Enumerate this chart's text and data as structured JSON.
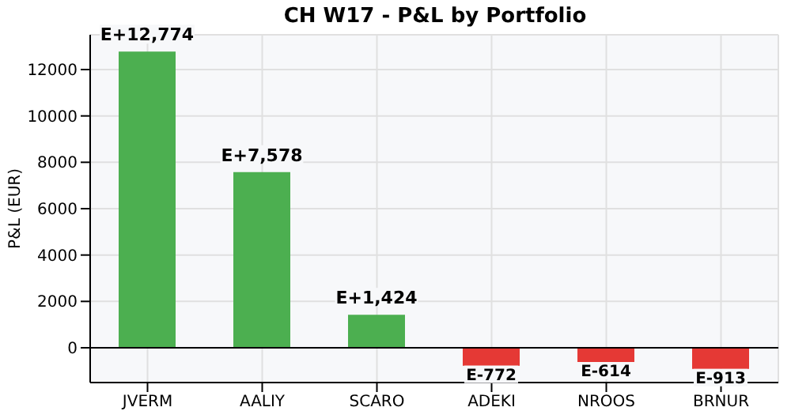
{
  "chart_data": {
    "type": "bar",
    "title": "CH W17 - P&L by Portfolio",
    "ylabel": "P&L (EUR)",
    "categories": [
      "JVERM",
      "AALIY",
      "SCARO",
      "ADEKI",
      "NROOS",
      "BRNUR"
    ],
    "values": [
      12774,
      7578,
      1424,
      -772,
      -614,
      -913
    ],
    "colors": [
      "#4caf50",
      "#4caf50",
      "#4caf50",
      "#e53935",
      "#e53935",
      "#e53935"
    ],
    "value_labels": [
      "E+12,774",
      "E+7,578",
      "E+1,424",
      "E-772",
      "E-614",
      "E-913"
    ],
    "ylim": [
      -1500,
      13500
    ],
    "yticks": [
      0,
      2000,
      4000,
      6000,
      8000,
      10000,
      12000
    ],
    "grid": true,
    "ref_lines": [
      {
        "axis": "y",
        "value": 0,
        "color": "#000000"
      }
    ]
  }
}
